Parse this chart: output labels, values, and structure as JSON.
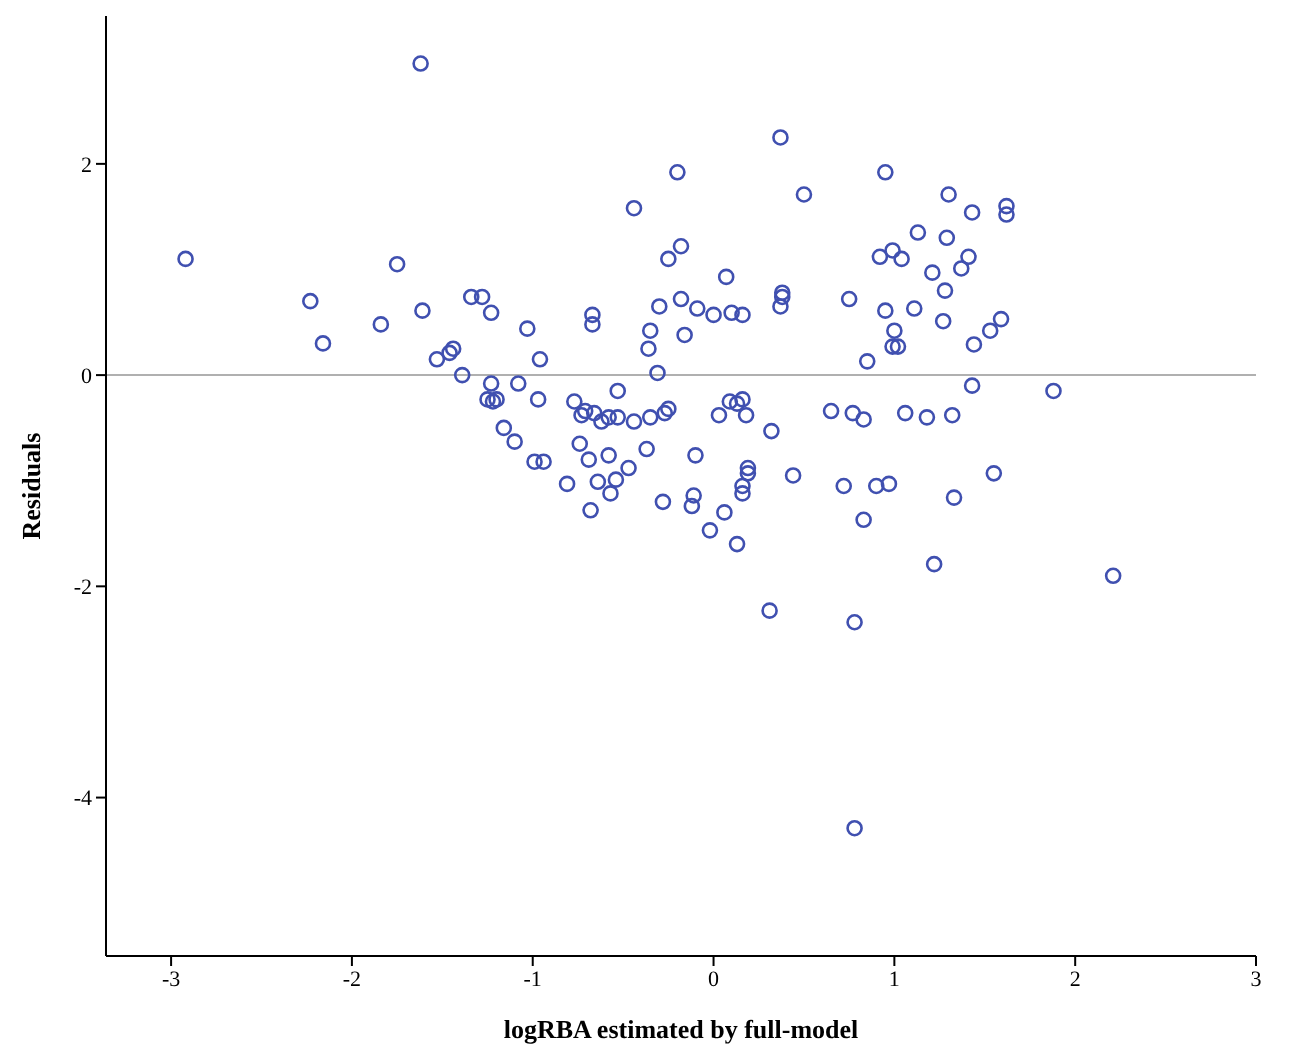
{
  "chart_data": {
    "type": "scatter",
    "xlabel": "logRBA estimated by full-model",
    "ylabel": "Residuals",
    "xlim": [
      -3.36,
      3
    ],
    "xticks": [
      -3,
      -2,
      -1,
      0,
      1,
      2,
      3
    ],
    "ylim": [
      -5.5,
      3.4
    ],
    "yticks": [
      -4,
      -2,
      0,
      2
    ],
    "grid": false,
    "marker": "circle",
    "ref_lines": [
      {
        "axis": "y",
        "value": 0,
        "color": "#b0b0b0"
      }
    ],
    "series": [
      {
        "color": "#4050b0",
        "x": [
          -2.92,
          -2.23,
          -2.16,
          -1.84,
          -1.75,
          -1.62,
          -1.61,
          -1.53,
          -1.46,
          -1.44,
          -1.39,
          -1.34,
          -1.28,
          -1.23,
          -1.23,
          -1.25,
          -1.22,
          -1.2,
          -1.16,
          -1.1,
          -1.08,
          -1.03,
          -0.97,
          -0.96,
          -0.99,
          -0.94,
          -0.81,
          -0.77,
          -0.73,
          -0.71,
          -0.67,
          -0.67,
          -0.74,
          -0.69,
          -0.68,
          -0.66,
          -0.62,
          -0.58,
          -0.64,
          -0.58,
          -0.57,
          -0.54,
          -0.53,
          -0.53,
          -0.47,
          -0.44,
          -0.44,
          -0.37,
          -0.35,
          -0.36,
          -0.35,
          -0.31,
          -0.3,
          -0.28,
          -0.27,
          -0.25,
          -0.25,
          -0.2,
          -0.18,
          -0.18,
          -0.16,
          -0.12,
          -0.11,
          -0.1,
          -0.09,
          -0.02,
          0,
          0.03,
          0.06,
          0.07,
          0.09,
          0.1,
          0.13,
          0.16,
          0.16,
          0.13,
          0.16,
          0.18,
          0.19,
          0.19,
          0.16,
          0.31,
          0.32,
          0.37,
          0.38,
          0.38,
          0.37,
          0.44,
          0.5,
          0.65,
          0.72,
          0.75,
          0.77,
          0.78,
          0.78,
          0.83,
          0.83,
          0.85,
          0.9,
          0.92,
          0.95,
          0.95,
          0.97,
          0.99,
          0.99,
          1.0,
          1.02,
          1.04,
          1.06,
          1.11,
          1.13,
          1.18,
          1.21,
          1.22,
          1.27,
          1.28,
          1.29,
          1.3,
          1.32,
          1.33,
          1.37,
          1.41,
          1.43,
          1.43,
          1.44,
          1.53,
          1.55,
          1.59,
          1.62,
          1.62,
          1.88,
          2.21
        ],
        "values": [
          1.1,
          0.7,
          0.3,
          0.48,
          1.05,
          2.95,
          0.61,
          0.15,
          0.21,
          0.25,
          0,
          0.74,
          0.74,
          0.59,
          -0.08,
          -0.23,
          -0.25,
          -0.23,
          -0.5,
          -0.63,
          -0.08,
          0.44,
          -0.23,
          0.15,
          -0.82,
          -0.82,
          -1.03,
          -0.25,
          -0.38,
          -0.34,
          0.48,
          0.57,
          -0.65,
          -0.8,
          -1.28,
          -0.36,
          -0.44,
          -0.4,
          -1.01,
          -0.76,
          -1.12,
          -0.99,
          -0.15,
          -0.4,
          -0.88,
          1.58,
          -0.44,
          -0.7,
          -0.4,
          0.25,
          0.42,
          0.02,
          0.65,
          -1.2,
          -0.36,
          -0.32,
          1.1,
          1.92,
          1.22,
          0.72,
          0.38,
          -1.24,
          -1.14,
          -0.76,
          0.63,
          -1.47,
          0.57,
          -0.38,
          -1.3,
          0.93,
          -0.25,
          0.59,
          -0.27,
          0.57,
          -0.23,
          -1.6,
          -1.05,
          -0.38,
          -0.93,
          -0.88,
          -1.12,
          -2.23,
          -0.53,
          2.25,
          0.74,
          0.78,
          0.65,
          -0.95,
          1.71,
          -0.34,
          -1.05,
          0.72,
          -0.36,
          -2.34,
          -4.29,
          -0.42,
          -1.37,
          0.13,
          -1.05,
          1.12,
          1.92,
          0.61,
          -1.03,
          0.27,
          1.18,
          0.42,
          0.27,
          1.1,
          -0.36,
          0.63,
          1.35,
          -0.4,
          0.97,
          -1.79,
          0.51,
          0.8,
          1.3,
          1.71,
          -0.38,
          -1.16,
          1.01,
          1.12,
          1.54,
          -0.1,
          0.29,
          0.42,
          -0.93,
          0.53,
          1.52,
          1.6,
          -0.15,
          -1.9
        ]
      }
    ]
  }
}
